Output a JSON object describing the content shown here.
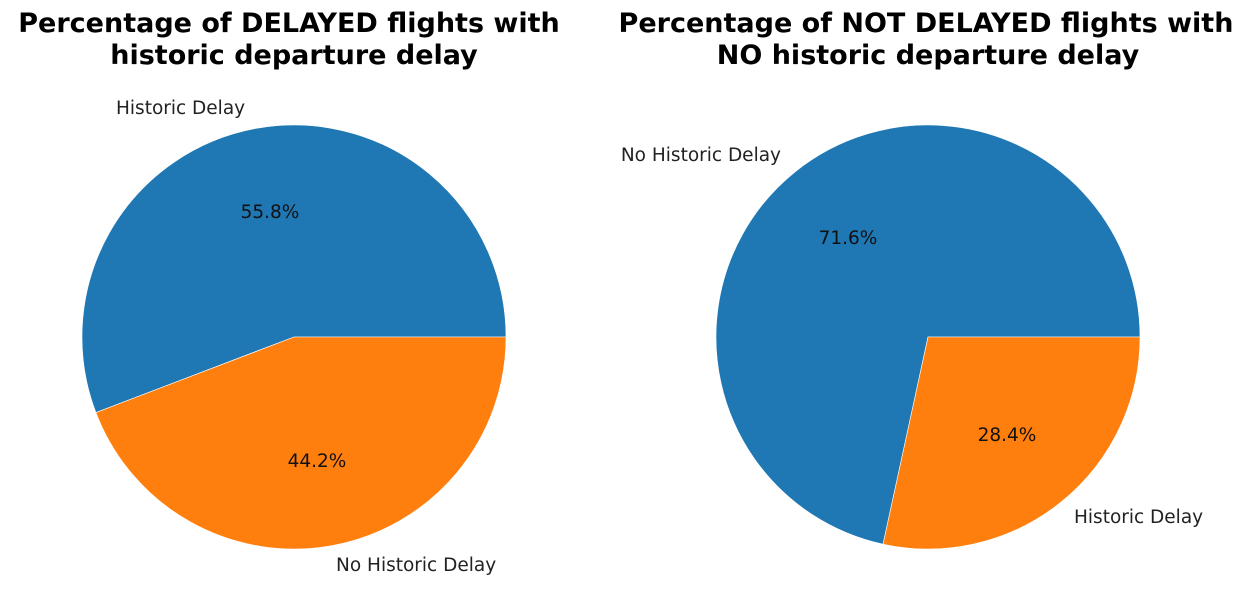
{
  "chart_data": [
    {
      "type": "pie",
      "title_line1": "Percentage of DELAYED flights with",
      "title_line2": "historic departure delay",
      "slices": [
        {
          "label": "Historic Delay",
          "value": 55.8,
          "pct_label": "55.8%",
          "color": "#1f77b4"
        },
        {
          "label": "No Historic Delay",
          "value": 44.2,
          "pct_label": "44.2%",
          "color": "#ff7f0e"
        }
      ]
    },
    {
      "type": "pie",
      "title_line1": "Percentage of NOT DELAYED flights with",
      "title_line2": "NO historic departure delay",
      "slices": [
        {
          "label": "No Historic Delay",
          "value": 71.6,
          "pct_label": "71.6%",
          "color": "#1f77b4"
        },
        {
          "label": "Historic Delay",
          "value": 28.4,
          "pct_label": "28.4%",
          "color": "#ff7f0e"
        }
      ]
    }
  ]
}
